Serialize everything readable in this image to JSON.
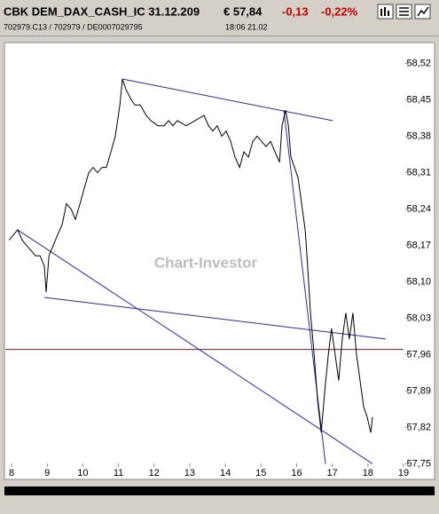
{
  "header": {
    "title": "CBK DEM_DAX_CASH_IC 31.12.209",
    "price": "€ 57,84",
    "change": "-0,13",
    "change_pct": "-0,22%",
    "ids": "702979.C13  /  702979  /  DE0007029795",
    "time": "18:06   21.02"
  },
  "chart_data": {
    "type": "line",
    "watermark": "Chart-Investor",
    "xlim": [
      7.8,
      19
    ],
    "xticks": [
      8,
      9,
      10,
      11,
      12,
      13,
      14,
      15,
      16,
      17,
      18,
      19
    ],
    "ylim": [
      57.72,
      58.56
    ],
    "yticks": [
      {
        "value": 57.75,
        "label": "57,75"
      },
      {
        "value": 57.82,
        "label": "57,82"
      },
      {
        "value": 57.89,
        "label": "57,89"
      },
      {
        "value": 57.96,
        "label": "57,96"
      },
      {
        "value": 58.03,
        "label": "58,03"
      },
      {
        "value": 58.1,
        "label": "58,10"
      },
      {
        "value": 58.17,
        "label": "58,17"
      },
      {
        "value": 58.24,
        "label": "58,24"
      },
      {
        "value": 58.31,
        "label": "58,31"
      },
      {
        "value": 58.38,
        "label": "58,38"
      },
      {
        "value": 58.45,
        "label": "58,45"
      },
      {
        "value": 58.52,
        "label": "58,52"
      }
    ],
    "series": [
      {
        "color": "#000000",
        "x": [
          7.93,
          8.05,
          8.17,
          8.3,
          8.42,
          8.55,
          8.67,
          8.8,
          8.92,
          8.97,
          9.05,
          9.17,
          9.29,
          9.42,
          9.54,
          9.67,
          9.79,
          9.92,
          10.04,
          10.17,
          10.29,
          10.41,
          10.54,
          10.66,
          10.79,
          10.91,
          11.04,
          11.11,
          11.21,
          11.36,
          11.46,
          11.61,
          11.78,
          11.91,
          12.11,
          12.28,
          12.41,
          12.53,
          12.65,
          12.9,
          13.15,
          13.4,
          13.53,
          13.65,
          13.77,
          13.9,
          14.02,
          14.15,
          14.27,
          14.4,
          14.52,
          14.65,
          14.77,
          14.89,
          15.02,
          15.14,
          15.27,
          15.39,
          15.52,
          15.59,
          15.69,
          15.77,
          15.84,
          15.94,
          16.04,
          16.14,
          16.24,
          16.31,
          16.39,
          16.49,
          16.59,
          16.69,
          16.79,
          16.89,
          16.98,
          17.08,
          17.18,
          17.28,
          17.38,
          17.48,
          17.58,
          17.68,
          17.78,
          17.88,
          17.98,
          18.08,
          18.13
        ],
        "values": [
          58.18,
          58.19,
          58.2,
          58.18,
          58.17,
          58.16,
          58.15,
          58.15,
          58.13,
          58.08,
          58.15,
          58.17,
          58.19,
          58.21,
          58.25,
          58.24,
          58.22,
          58.25,
          58.28,
          58.31,
          58.32,
          58.31,
          58.32,
          58.32,
          58.35,
          58.38,
          58.44,
          58.49,
          58.47,
          58.45,
          58.44,
          58.44,
          58.42,
          58.41,
          58.4,
          58.4,
          58.41,
          58.4,
          58.41,
          58.4,
          58.41,
          58.42,
          58.4,
          58.39,
          58.4,
          58.38,
          58.39,
          58.37,
          58.34,
          58.32,
          58.35,
          58.34,
          58.37,
          58.38,
          58.37,
          58.36,
          58.37,
          58.35,
          58.33,
          58.4,
          58.43,
          58.4,
          58.34,
          58.32,
          58.3,
          58.25,
          58.2,
          58.13,
          58.04,
          57.96,
          57.87,
          57.81,
          57.89,
          57.96,
          58.01,
          57.96,
          57.91,
          57.99,
          58.04,
          57.99,
          58.04,
          57.96,
          57.91,
          57.86,
          57.84,
          57.81,
          57.84
        ]
      }
    ],
    "hline": 57.97,
    "hline_color": "#8b1a1a",
    "trendline_color": "#2a2aa8",
    "trendlines": [
      {
        "x": [
          11.11,
          17.01
        ],
        "y": [
          58.49,
          58.41
        ]
      },
      {
        "x": [
          8.17,
          18.13
        ],
        "y": [
          58.2,
          57.75
        ]
      },
      {
        "x": [
          8.92,
          18.5
        ],
        "y": [
          58.07,
          57.99
        ]
      },
      {
        "x": [
          15.64,
          16.81
        ],
        "y": [
          58.43,
          57.75
        ]
      }
    ]
  }
}
